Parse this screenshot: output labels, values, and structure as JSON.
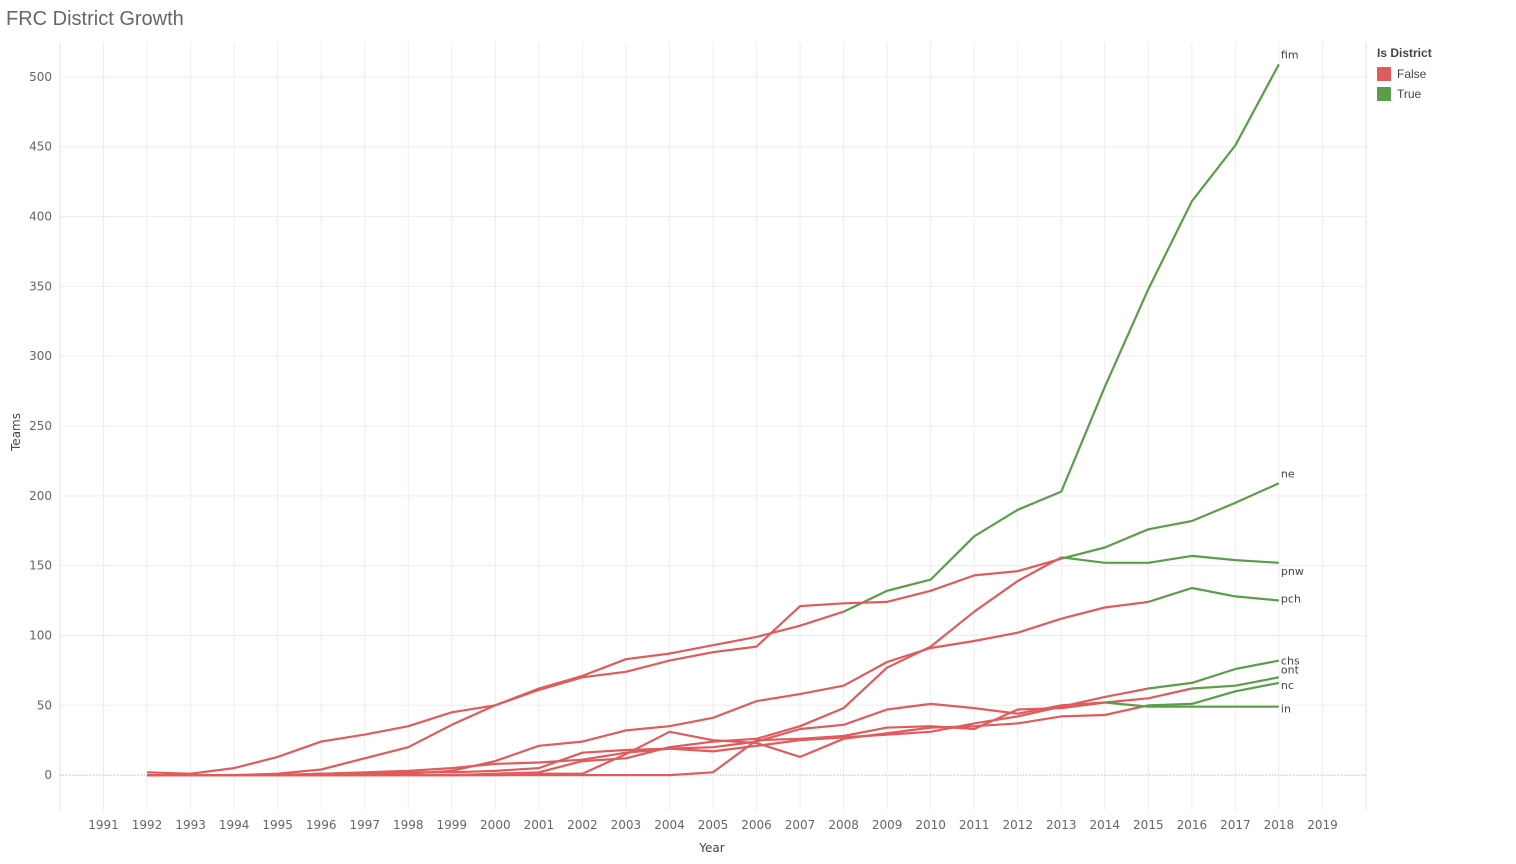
{
  "page": {
    "title": "FRC District Growth"
  },
  "colors": {
    "false": "#E05B5B",
    "true": "#5A9E4B",
    "grid": "#EDEDED"
  },
  "legend": {
    "title": "Is District",
    "items": [
      {
        "label": "False",
        "color": "#E05B5B"
      },
      {
        "label": "True",
        "color": "#5A9E4B"
      }
    ]
  },
  "chart_data": {
    "type": "line",
    "xlabel": "Year",
    "ylabel": "Teams",
    "xlim": [
      1990,
      2020
    ],
    "ylim": [
      -25,
      525
    ],
    "x_ticks": [
      1991,
      1992,
      1993,
      1994,
      1995,
      1996,
      1997,
      1998,
      1999,
      2000,
      2001,
      2002,
      2003,
      2004,
      2005,
      2006,
      2007,
      2008,
      2009,
      2010,
      2011,
      2012,
      2013,
      2014,
      2015,
      2016,
      2017,
      2018,
      2019
    ],
    "y_ticks": [
      0,
      50,
      100,
      150,
      200,
      250,
      300,
      350,
      400,
      450,
      500
    ],
    "grid": true,
    "legend_position": "right",
    "series": [
      {
        "name": "fim",
        "district_start": 2009,
        "x": [
          1992,
          1993,
          1994,
          1995,
          1996,
          1997,
          1998,
          1999,
          2000,
          2001,
          2002,
          2003,
          2004,
          2005,
          2006,
          2007,
          2008,
          2009,
          2010,
          2011,
          2012,
          2013,
          2014,
          2015,
          2016,
          2017,
          2018
        ],
        "y": [
          2,
          1,
          5,
          13,
          24,
          29,
          35,
          45,
          50,
          62,
          71,
          83,
          87,
          93,
          99,
          107,
          117,
          132,
          140,
          171,
          190,
          203,
          278,
          348,
          411,
          451,
          509
        ]
      },
      {
        "name": "ne",
        "district_start": 2014,
        "x": [
          1992,
          1993,
          1994,
          1995,
          1996,
          1997,
          1998,
          1999,
          2000,
          2001,
          2002,
          2003,
          2004,
          2005,
          2006,
          2007,
          2008,
          2009,
          2010,
          2011,
          2012,
          2013,
          2014,
          2015,
          2016,
          2017,
          2018
        ],
        "y": [
          0,
          0,
          0,
          1,
          4,
          12,
          20,
          36,
          50,
          61,
          70,
          74,
          82,
          88,
          92,
          121,
          123,
          124,
          132,
          143,
          146,
          155,
          163,
          176,
          182,
          195,
          209
        ]
      },
      {
        "name": "ont",
        "district_start": 2017,
        "x": [
          1992,
          1993,
          1994,
          1995,
          1996,
          1997,
          1998,
          1999,
          2000,
          2001,
          2002,
          2003,
          2004,
          2005,
          2006,
          2007,
          2008,
          2009,
          2010,
          2011,
          2012,
          2013,
          2014,
          2015,
          2016,
          2017,
          2018
        ],
        "y": [
          0,
          0,
          0,
          0,
          1,
          1,
          2,
          2,
          3,
          5,
          16,
          18,
          19,
          20,
          24,
          33,
          36,
          47,
          51,
          48,
          44,
          50,
          52,
          55,
          62,
          64,
          70
        ]
      },
      {
        "name": "pnw",
        "district_start": 2014,
        "x": [
          1992,
          1993,
          1994,
          1995,
          1996,
          1997,
          1998,
          1999,
          2000,
          2001,
          2002,
          2003,
          2004,
          2005,
          2006,
          2007,
          2008,
          2009,
          2010,
          2011,
          2012,
          2013,
          2014,
          2015,
          2016,
          2017,
          2018
        ],
        "y": [
          0,
          0,
          0,
          0,
          0,
          0,
          0,
          0,
          1,
          2,
          10,
          12,
          20,
          24,
          26,
          35,
          48,
          77,
          92,
          117,
          139,
          156,
          152,
          152,
          157,
          154,
          152
        ]
      },
      {
        "name": "chs",
        "district_start": 2016,
        "x": [
          1992,
          1993,
          1994,
          1995,
          1996,
          1997,
          1998,
          1999,
          2000,
          2001,
          2002,
          2003,
          2004,
          2005,
          2006,
          2007,
          2008,
          2009,
          2010,
          2011,
          2012,
          2013,
          2014,
          2015,
          2016,
          2017,
          2018
        ],
        "y": [
          0,
          0,
          0,
          0,
          1,
          2,
          3,
          5,
          8,
          9,
          11,
          16,
          19,
          17,
          21,
          25,
          27,
          29,
          31,
          37,
          42,
          49,
          56,
          62,
          66,
          76,
          82
        ]
      },
      {
        "name": "pch",
        "district_start": 2016,
        "x": [
          1992,
          1993,
          1994,
          1995,
          1996,
          1997,
          1998,
          1999,
          2000,
          2001,
          2002,
          2003,
          2004,
          2005,
          2006,
          2007,
          2008,
          2009,
          2010,
          2011,
          2012,
          2013,
          2014,
          2015,
          2016,
          2017,
          2018
        ],
        "y": [
          0,
          0,
          0,
          0,
          0,
          0,
          1,
          3,
          10,
          21,
          24,
          32,
          35,
          41,
          53,
          58,
          64,
          81,
          91,
          96,
          102,
          112,
          120,
          124,
          134,
          128,
          125
        ]
      },
      {
        "name": "nc",
        "district_start": 2016,
        "x": [
          1992,
          1993,
          1994,
          1995,
          1996,
          1997,
          1998,
          1999,
          2000,
          2001,
          2002,
          2003,
          2004,
          2005,
          2006,
          2007,
          2008,
          2009,
          2010,
          2011,
          2012,
          2013,
          2014,
          2015,
          2016,
          2017,
          2018
        ],
        "y": [
          0,
          0,
          0,
          0,
          0,
          0,
          0,
          0,
          0,
          1,
          1,
          15,
          31,
          25,
          23,
          13,
          26,
          30,
          34,
          35,
          37,
          42,
          43,
          50,
          51,
          60,
          66
        ]
      },
      {
        "name": "in",
        "district_start": 2015,
        "x": [
          1992,
          1993,
          1994,
          1995,
          1996,
          1997,
          1998,
          1999,
          2000,
          2001,
          2002,
          2003,
          2004,
          2005,
          2006,
          2007,
          2008,
          2009,
          2010,
          2011,
          2012,
          2013,
          2014,
          2015,
          2016,
          2017,
          2018
        ],
        "y": [
          0,
          0,
          0,
          0,
          0,
          0,
          0,
          0,
          0,
          0,
          0,
          0,
          0,
          2,
          25,
          26,
          28,
          34,
          35,
          33,
          47,
          48,
          52,
          49,
          49,
          49,
          49
        ]
      }
    ]
  }
}
